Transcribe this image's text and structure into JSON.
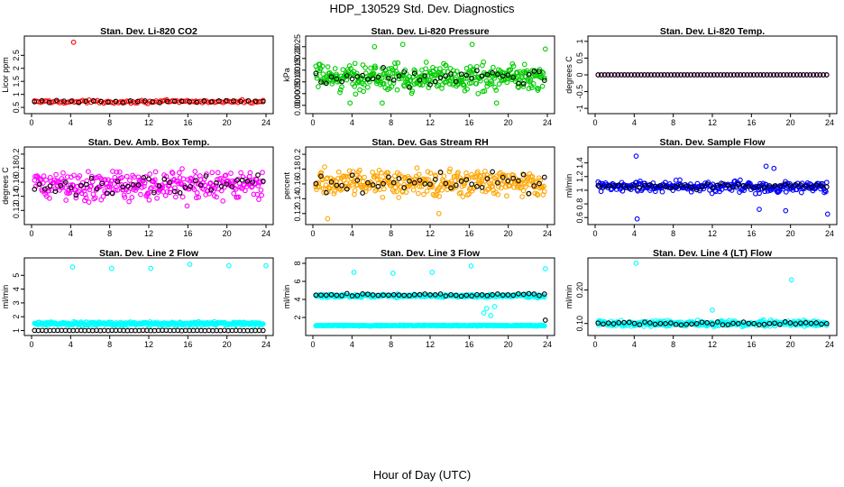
{
  "figure": {
    "title": "HDP_130529  Std. Dev. Diagnostics",
    "xlabel": "Hour of Day (UTC)"
  },
  "chart_data": [
    {
      "type": "scatter",
      "title": "Stan. Dev. Li-820 CO2",
      "xlabel": "",
      "ylabel": "Licor ppm",
      "xlim": [
        0,
        24
      ],
      "ylim": [
        0.4,
        3.1
      ],
      "xticks": [
        0,
        4,
        8,
        12,
        16,
        20,
        24
      ],
      "yticks": [
        0.5,
        1.0,
        1.5,
        2.0,
        2.5
      ],
      "series": [
        {
          "color": "#ff0000",
          "x": [
            4.3
          ],
          "y": [
            3.0
          ],
          "band": {
            "n": 110,
            "center": 0.72,
            "spread": 0.08
          }
        },
        {
          "color": "#000000",
          "band": {
            "n": 32,
            "center": 0.73,
            "spread": 0.07
          }
        }
      ]
    },
    {
      "type": "scatter",
      "title": "Stan. Dev. Li-820 Pressure",
      "xlabel": "",
      "ylabel": "kPa",
      "xlim": [
        0,
        24
      ],
      "ylim": [
        -0.0002,
        0.0028
      ],
      "xticks": [
        0,
        4,
        8,
        12,
        16,
        20,
        24
      ],
      "yticks": [
        0.0,
        0.0005,
        0.001,
        0.0015,
        0.002,
        0.0025
      ],
      "ytick_labels": [
        "0.000",
        "0.0005",
        "0.0010",
        "0.0015",
        "0.0020",
        "0.0025"
      ],
      "series": [
        {
          "color": "#00cc00",
          "x": [
            6.3,
            9.2,
            16.3,
            23.8,
            3.8,
            7.1,
            18.8
          ],
          "y": [
            0.0025,
            0.0026,
            0.0026,
            0.0024,
            0.0001,
            0.0001,
            0.0001
          ],
          "band": {
            "n": 380,
            "center": 0.0012,
            "spread": 0.0008
          }
        },
        {
          "color": "#000000",
          "band": {
            "n": 45,
            "center": 0.0012,
            "spread": 0.0006
          }
        }
      ]
    },
    {
      "type": "scatter",
      "title": "Stan. Dev. Li-820 Temp.",
      "xlabel": "",
      "ylabel": "degrees C",
      "xlim": [
        0,
        24
      ],
      "ylim": [
        -1.05,
        1.05
      ],
      "xticks": [
        0,
        4,
        8,
        12,
        16,
        20,
        24
      ],
      "yticks": [
        -1.0,
        -0.5,
        0.0,
        0.5,
        1.0
      ],
      "series": [
        {
          "color": "#ff00ff",
          "band": {
            "n": 70,
            "center": 0.0,
            "spread": 0.0
          }
        },
        {
          "color": "#000000",
          "band": {
            "n": 70,
            "center": 0.0,
            "spread": 0.0
          }
        }
      ]
    },
    {
      "type": "scatter",
      "title": "Stan. Dev. Amb. Box Temp.",
      "xlabel": "",
      "ylabel": "degrees C",
      "xlim": [
        0,
        24
      ],
      "ylim": [
        0.105,
        0.205
      ],
      "xticks": [
        0,
        4,
        8,
        12,
        16,
        20,
        24
      ],
      "yticks": [
        0.12,
        0.14,
        0.16,
        0.18,
        0.2
      ],
      "series": [
        {
          "color": "#ff00ff",
          "band": {
            "n": 320,
            "center": 0.155,
            "spread": 0.03
          }
        },
        {
          "color": "#000000",
          "band": {
            "n": 45,
            "center": 0.155,
            "spread": 0.02
          }
        }
      ]
    },
    {
      "type": "scatter",
      "title": "Stan. Dev. Gas Stream RH",
      "xlabel": "",
      "ylabel": "percent",
      "xlim": [
        0,
        24
      ],
      "ylim": [
        0.11,
        0.205
      ],
      "xticks": [
        0,
        4,
        8,
        12,
        16,
        20,
        24
      ],
      "yticks": [
        0.12,
        0.14,
        0.16,
        0.18,
        0.2
      ],
      "series": [
        {
          "color": "#ffa500",
          "x": [
            1.5,
            12.9
          ],
          "y": [
            0.113,
            0.12
          ],
          "band": {
            "n": 340,
            "center": 0.162,
            "spread": 0.025
          }
        },
        {
          "color": "#000000",
          "band": {
            "n": 45,
            "center": 0.16,
            "spread": 0.02
          }
        }
      ]
    },
    {
      "type": "scatter",
      "title": "Stan. Dev. Sample Flow",
      "xlabel": "",
      "ylabel": "ml/min",
      "xlim": [
        0,
        24
      ],
      "ylim": [
        0.55,
        1.58
      ],
      "xticks": [
        0,
        4,
        8,
        12,
        16,
        20,
        24
      ],
      "yticks": [
        0.6,
        0.8,
        1.0,
        1.2,
        1.4
      ],
      "series": [
        {
          "color": "#0000ff",
          "x": [
            4.2,
            4.3,
            17.5,
            18.3,
            23.8,
            16.8,
            19.5
          ],
          "y": [
            1.5,
            0.58,
            1.35,
            1.32,
            0.65,
            0.72,
            0.7
          ],
          "band": {
            "n": 300,
            "center": 1.05,
            "spread": 0.12
          }
        },
        {
          "color": "#000000",
          "band": {
            "n": 45,
            "center": 1.06,
            "spread": 0.06
          }
        }
      ]
    },
    {
      "type": "scatter",
      "title": "Stan. Dev. Line 2 Flow",
      "xlabel": "",
      "ylabel": "ml/min",
      "xlim": [
        0,
        24
      ],
      "ylim": [
        0.9,
        6.0
      ],
      "xticks": [
        0,
        4,
        8,
        12,
        16,
        20,
        24
      ],
      "yticks": [
        1,
        2,
        3,
        4,
        5
      ],
      "series": [
        {
          "color": "#00ffff",
          "x": [
            4.2,
            8.2,
            12.2,
            16.2,
            20.2,
            24.0
          ],
          "y": [
            5.6,
            5.5,
            5.5,
            5.8,
            5.7,
            5.7
          ],
          "band": {
            "n": 320,
            "center": 1.5,
            "spread": 0.18
          }
        },
        {
          "color": "#000000",
          "band": {
            "n": 60,
            "center": 1.0,
            "spread": 0.02
          }
        }
      ]
    },
    {
      "type": "scatter",
      "title": "Stan. Dev. Line 3 Flow",
      "xlabel": "",
      "ylabel": "ml/min",
      "xlim": [
        0,
        24
      ],
      "ylim": [
        0.4,
        8.2
      ],
      "xticks": [
        0,
        4,
        8,
        12,
        16,
        20,
        24
      ],
      "yticks": [
        2,
        4,
        6,
        8
      ],
      "series": [
        {
          "color": "#00ffff",
          "x": [
            4.2,
            8.2,
            12.2,
            16.2,
            23.8,
            17.5,
            17.8,
            18.2,
            18.6
          ],
          "y": [
            7.0,
            6.9,
            7.0,
            7.7,
            7.4,
            2.5,
            3.0,
            2.2,
            3.2
          ],
          "band": {
            "n": 300,
            "center": 4.4,
            "spread": 0.25
          },
          "band2": {
            "n": 300,
            "center": 1.1,
            "spread": 0.08
          }
        },
        {
          "color": "#000000",
          "x": [
            23.8
          ],
          "y": [
            1.7
          ],
          "band": {
            "n": 45,
            "center": 4.5,
            "spread": 0.2
          }
        }
      ]
    },
    {
      "type": "scatter",
      "title": "Stan. Dev. Line 4 (LT) Flow",
      "xlabel": "",
      "ylabel": "ml/min",
      "xlim": [
        0,
        24
      ],
      "ylim": [
        0.075,
        0.285
      ],
      "xticks": [
        0,
        4,
        8,
        12,
        16,
        20,
        24
      ],
      "yticks": [
        0.1,
        0.2
      ],
      "ytick_labels": [
        "0.10",
        "0.20"
      ],
      "series": [
        {
          "color": "#00ffff",
          "x": [
            4.2,
            20.1,
            12.0
          ],
          "y": [
            0.28,
            0.23,
            0.14
          ],
          "band": {
            "n": 320,
            "center": 0.1,
            "spread": 0.012
          }
        },
        {
          "color": "#000000",
          "band": {
            "n": 45,
            "center": 0.1,
            "spread": 0.008
          }
        }
      ]
    }
  ]
}
